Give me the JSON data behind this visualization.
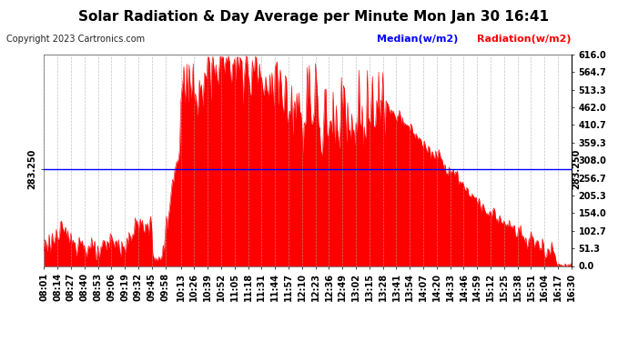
{
  "title": "Solar Radiation & Day Average per Minute Mon Jan 30 16:41",
  "copyright": "Copyright 2023 Cartronics.com",
  "legend_median": "Median(w/m2)",
  "legend_radiation": "Radiation(w/m2)",
  "ylabel_both": "283.250",
  "ylabel_right_vals": [
    0.0,
    51.3,
    102.7,
    154.0,
    205.3,
    256.7,
    308.0,
    359.3,
    410.7,
    462.0,
    513.3,
    564.7,
    616.0
  ],
  "median_value": 283.25,
  "ymax": 616.0,
  "ymin": 0.0,
  "fill_color": "#ff0000",
  "median_color": "#0000ff",
  "background_color": "#ffffff",
  "grid_color": "#aaaaaa",
  "title_color": "#000000",
  "title_fontsize": 11,
  "tick_label_fontsize": 7,
  "copyright_fontsize": 7,
  "legend_fontsize": 8
}
